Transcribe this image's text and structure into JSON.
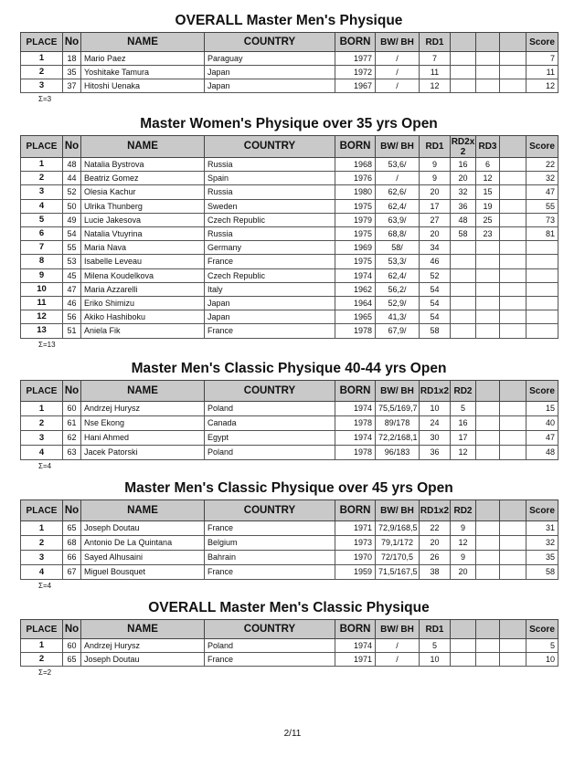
{
  "sections": [
    {
      "title": "OVERALL Master Men's Physique",
      "headers": [
        "PLACE",
        "No",
        "NAME",
        "COUNTRY",
        "BORN",
        "BW/ BH",
        "RD1",
        "",
        "",
        "",
        "Score"
      ],
      "rows": [
        [
          "1",
          "18",
          "Mario Paez",
          "Paraguay",
          "1977",
          "/",
          "7",
          "",
          "",
          "",
          "7"
        ],
        [
          "2",
          "35",
          "Yoshitake Tamura",
          "Japan",
          "1972",
          "/",
          "11",
          "",
          "",
          "",
          "11"
        ],
        [
          "3",
          "37",
          "Hitoshi Uenaka",
          "Japan",
          "1967",
          "/",
          "12",
          "",
          "",
          "",
          "12"
        ]
      ],
      "count": "Σ=3"
    },
    {
      "title": "Master Women's Physique over 35 yrs Open",
      "headers": [
        "PLACE",
        "No",
        "NAME",
        "COUNTRY",
        "BORN",
        "BW/ BH",
        "RD1",
        "RD2x 2",
        "RD3",
        "",
        "Score"
      ],
      "rows": [
        [
          "1",
          "48",
          "Natalia Bystrova",
          "Russia",
          "1968",
          "53,6/",
          "9",
          "16",
          "6",
          "",
          "22"
        ],
        [
          "2",
          "44",
          "Beatriz Gomez",
          "Spain",
          "1976",
          "/",
          "9",
          "20",
          "12",
          "",
          "32"
        ],
        [
          "3",
          "52",
          "Olesia Kachur",
          "Russia",
          "1980",
          "62,6/",
          "20",
          "32",
          "15",
          "",
          "47"
        ],
        [
          "4",
          "50",
          "Ulrika Thunberg",
          "Sweden",
          "1975",
          "62,4/",
          "17",
          "36",
          "19",
          "",
          "55"
        ],
        [
          "5",
          "49",
          "Lucie Jakesova",
          "Czech Republic",
          "1979",
          "63,9/",
          "27",
          "48",
          "25",
          "",
          "73"
        ],
        [
          "6",
          "54",
          "Natalia Vtuyrina",
          "Russia",
          "1975",
          "68,8/",
          "20",
          "58",
          "23",
          "",
          "81"
        ],
        [
          "7",
          "55",
          "Maria Nava",
          "Germany",
          "1969",
          "58/",
          "34",
          "",
          "",
          "",
          ""
        ],
        [
          "8",
          "53",
          "Isabelle Leveau",
          "France",
          "1975",
          "53,3/",
          "46",
          "",
          "",
          "",
          ""
        ],
        [
          "9",
          "45",
          "Milena Koudelkova",
          "Czech Republic",
          "1974",
          "62,4/",
          "52",
          "",
          "",
          "",
          ""
        ],
        [
          "10",
          "47",
          "Maria Azzarelli",
          "Italy",
          "1962",
          "56,2/",
          "54",
          "",
          "",
          "",
          ""
        ],
        [
          "11",
          "46",
          "Eriko Shimizu",
          "Japan",
          "1964",
          "52,9/",
          "54",
          "",
          "",
          "",
          ""
        ],
        [
          "12",
          "56",
          "Akiko Hashiboku",
          "Japan",
          "1965",
          "41,3/",
          "54",
          "",
          "",
          "",
          ""
        ],
        [
          "13",
          "51",
          "Aniela Fik",
          "France",
          "1978",
          "67,9/",
          "58",
          "",
          "",
          "",
          ""
        ]
      ],
      "count": "Σ=13"
    },
    {
      "title": "Master Men's Classic Physique 40-44 yrs Open",
      "headers": [
        "PLACE",
        "No",
        "NAME",
        "COUNTRY",
        "BORN",
        "BW/ BH",
        "RD1x2",
        "RD2",
        "",
        "",
        "Score"
      ],
      "rows": [
        [
          "1",
          "60",
          "Andrzej Hurysz",
          "Poland",
          "1974",
          "75,5/169,7",
          "10",
          "5",
          "",
          "",
          "15"
        ],
        [
          "2",
          "61",
          "Nse Ekong",
          "Canada",
          "1978",
          "89/178",
          "24",
          "16",
          "",
          "",
          "40"
        ],
        [
          "3",
          "62",
          "Hani Ahmed",
          "Egypt",
          "1974",
          "72,2/168,1",
          "30",
          "17",
          "",
          "",
          "47"
        ],
        [
          "4",
          "63",
          "Jacek Patorski",
          "Poland",
          "1978",
          "96/183",
          "36",
          "12",
          "",
          "",
          "48"
        ]
      ],
      "count": "Σ=4"
    },
    {
      "title": "Master Men's Classic Physique over 45 yrs Open",
      "headers": [
        "PLACE",
        "No",
        "NAME",
        "COUNTRY",
        "BORN",
        "BW/ BH",
        "RD1x2",
        "RD2",
        "",
        "",
        "Score"
      ],
      "rows": [
        [
          "1",
          "65",
          "Joseph Doutau",
          "France",
          "1971",
          "72,9/168,5",
          "22",
          "9",
          "",
          "",
          "31"
        ],
        [
          "2",
          "68",
          "Antonio De La Quintana",
          "Belgium",
          "1973",
          "79,1/172",
          "20",
          "12",
          "",
          "",
          "32"
        ],
        [
          "3",
          "66",
          "Sayed Alhusaini",
          "Bahrain",
          "1970",
          "72/170,5",
          "26",
          "9",
          "",
          "",
          "35"
        ],
        [
          "4",
          "67",
          "Miguel Bousquet",
          "France",
          "1959",
          "71,5/167,5",
          "38",
          "20",
          "",
          "",
          "58"
        ]
      ],
      "count": "Σ=4"
    },
    {
      "title": "OVERALL Master Men's Classic Physique",
      "headers": [
        "PLACE",
        "No",
        "NAME",
        "COUNTRY",
        "BORN",
        "BW/ BH",
        "RD1",
        "",
        "",
        "",
        "Score"
      ],
      "rows": [
        [
          "1",
          "60",
          "Andrzej Hurysz",
          "Poland",
          "1974",
          "/",
          "5",
          "",
          "",
          "",
          "5"
        ],
        [
          "2",
          "65",
          "Joseph Doutau",
          "France",
          "1971",
          "/",
          "10",
          "",
          "",
          "",
          "10"
        ]
      ],
      "count": "Σ=2"
    }
  ],
  "page_number": "2/11"
}
